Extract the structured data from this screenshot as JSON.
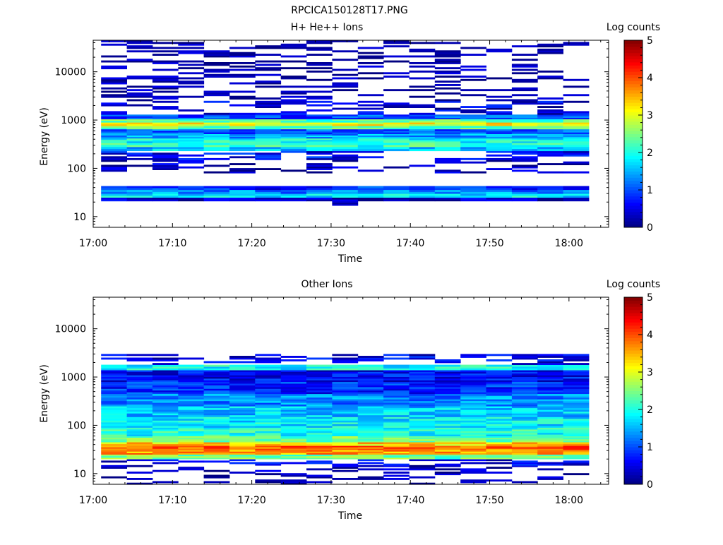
{
  "figure": {
    "title": "RPCICA150128T17.PNG"
  },
  "chart_data": [
    {
      "type": "heatmap",
      "title": "H+ He++ Ions",
      "xlabel": "Time",
      "ylabel": "Energy (eV)",
      "x_ticks": [
        "17:00",
        "17:10",
        "17:20",
        "17:30",
        "17:40",
        "17:50",
        "18:00"
      ],
      "x_range_minutes": [
        0,
        65
      ],
      "y_scale": "log",
      "y_range": [
        6,
        45000
      ],
      "y_ticks": [
        "10",
        "100",
        "1000",
        "10000"
      ],
      "colorbar": {
        "label": "Log counts",
        "range": [
          0,
          5
        ],
        "ticks": [
          "0",
          "1",
          "2",
          "3",
          "4",
          "5"
        ]
      },
      "bands": [
        {
          "e_min": 17,
          "e_max": 21,
          "level": 0.3,
          "note": "single column near 17:33"
        },
        {
          "e_min": 21,
          "e_max": 25,
          "level": 0.3
        },
        {
          "e_min": 25,
          "e_max": 30,
          "level": 1.8
        },
        {
          "e_min": 30,
          "e_max": 36,
          "level": 1.3
        },
        {
          "e_min": 36,
          "e_max": 43,
          "level": 0.8
        },
        {
          "e_min": 80,
          "e_max": 150,
          "level": 0.25,
          "sparse": true
        },
        {
          "e_min": 150,
          "e_max": 230,
          "level": 0.6,
          "sparse": true
        },
        {
          "e_min": 230,
          "e_max": 280,
          "level": 1.6
        },
        {
          "e_min": 280,
          "e_max": 340,
          "level": 2.1
        },
        {
          "e_min": 340,
          "e_max": 420,
          "level": 1.9
        },
        {
          "e_min": 420,
          "e_max": 520,
          "level": 1.4
        },
        {
          "e_min": 520,
          "e_max": 650,
          "level": 1.1
        },
        {
          "e_min": 650,
          "e_max": 760,
          "level": 2.4
        },
        {
          "e_min": 760,
          "e_max": 900,
          "level": 3.1
        },
        {
          "e_min": 900,
          "e_max": 1050,
          "level": 2.3
        },
        {
          "e_min": 1050,
          "e_max": 1300,
          "level": 1.0
        },
        {
          "e_min": 1300,
          "e_max": 2500,
          "level": 0.45,
          "sparse": true
        },
        {
          "e_min": 2500,
          "e_max": 45000,
          "level": 0.1,
          "sparse": true
        }
      ]
    },
    {
      "type": "heatmap",
      "title": "Other Ions",
      "xlabel": "Time",
      "ylabel": "Energy (eV)",
      "x_ticks": [
        "17:00",
        "17:10",
        "17:20",
        "17:30",
        "17:40",
        "17:50",
        "18:00"
      ],
      "x_range_minutes": [
        0,
        65
      ],
      "y_scale": "log",
      "y_range": [
        6,
        45000
      ],
      "y_ticks": [
        "10",
        "100",
        "1000",
        "10000"
      ],
      "colorbar": {
        "label": "Log counts",
        "range": [
          0,
          5
        ],
        "ticks": [
          "0",
          "1",
          "2",
          "3",
          "4",
          "5"
        ]
      },
      "bands": [
        {
          "e_min": 6,
          "e_max": 11,
          "level": 0.1,
          "sparse": true
        },
        {
          "e_min": 11,
          "e_max": 15,
          "level": 0.2,
          "sparse": true
        },
        {
          "e_min": 15,
          "e_max": 20,
          "level": 0.5,
          "sparse": true
        },
        {
          "e_min": 20,
          "e_max": 25,
          "level": 2.4
        },
        {
          "e_min": 25,
          "e_max": 31,
          "level": 3.6
        },
        {
          "e_min": 31,
          "e_max": 38,
          "level": 3.9
        },
        {
          "e_min": 38,
          "e_max": 45,
          "level": 3.3
        },
        {
          "e_min": 45,
          "e_max": 60,
          "level": 2.4
        },
        {
          "e_min": 60,
          "e_max": 90,
          "level": 2.0
        },
        {
          "e_min": 90,
          "e_max": 150,
          "level": 1.8
        },
        {
          "e_min": 150,
          "e_max": 250,
          "level": 1.6
        },
        {
          "e_min": 250,
          "e_max": 450,
          "level": 1.3
        },
        {
          "e_min": 450,
          "e_max": 800,
          "level": 0.8
        },
        {
          "e_min": 800,
          "e_max": 1400,
          "level": 0.6
        },
        {
          "e_min": 1400,
          "e_max": 1800,
          "level": 1.9
        },
        {
          "e_min": 1800,
          "e_max": 3000,
          "level": 0.5,
          "sparse": true
        }
      ]
    }
  ]
}
